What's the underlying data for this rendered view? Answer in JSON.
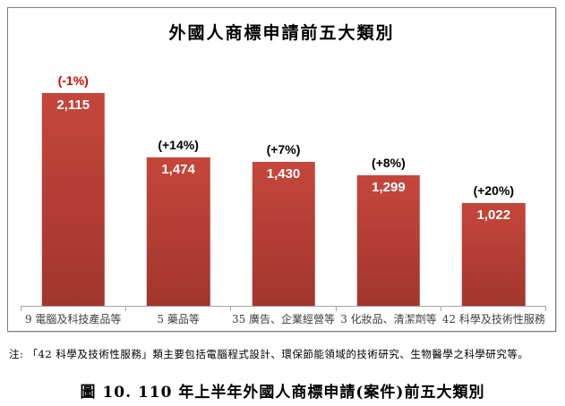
{
  "figure": {
    "note": "注: 「42 科學及技術性服務」類主要包括電腦程式設計、環保節能領域的技術研究、生物醫學之科學研究等。",
    "caption": "圖 10. 110 年上半年外國人商標申請(案件)前五大類別"
  },
  "chart_data": {
    "type": "bar",
    "title": "外國人商標申請前五大類別",
    "categories": [
      "9 電腦及科技產品等",
      "5 藥品等",
      "35 廣告、企業經營等",
      "3 化妝品、清潔劑等",
      "42 科學及技術性服務"
    ],
    "values": [
      2115,
      1474,
      1430,
      1299,
      1022
    ],
    "value_labels": [
      "2,115",
      "1,474",
      "1,430",
      "1,299",
      "1,022"
    ],
    "pct_change_labels": [
      "(-1%)",
      "(+14%)",
      "(+7%)",
      "(+8%)",
      "(+20%)"
    ],
    "pct_label_colors": [
      "#e00000",
      "#000000",
      "#000000",
      "#000000",
      "#000000"
    ],
    "value_label_color": "#ffffff",
    "bar_color_top": "#c5463b",
    "bar_color_bottom": "#a2362d",
    "axis_color": "#a6a6a6",
    "ylim": [
      0,
      2115
    ],
    "grid": false,
    "legend": false,
    "xlabel": "",
    "ylabel": ""
  }
}
